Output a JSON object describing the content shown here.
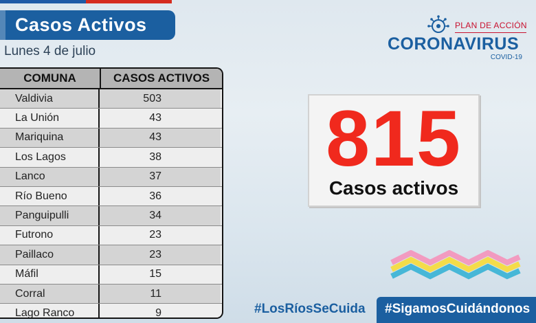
{
  "header": {
    "title": "Casos Activos",
    "date": "Lunes 4 de julio"
  },
  "table": {
    "headers": [
      "COMUNA",
      "CASOS ACTIVOS"
    ],
    "rows": [
      {
        "comuna": "Valdivia",
        "casos": "503"
      },
      {
        "comuna": "La Unión",
        "casos": "43"
      },
      {
        "comuna": "Mariquina",
        "casos": "43"
      },
      {
        "comuna": "Los Lagos",
        "casos": "38"
      },
      {
        "comuna": "Lanco",
        "casos": "37"
      },
      {
        "comuna": "Río Bueno",
        "casos": "36"
      },
      {
        "comuna": "Panguipulli",
        "casos": "34"
      },
      {
        "comuna": "Futrono",
        "casos": "23"
      },
      {
        "comuna": "Paillaco",
        "casos": "23"
      },
      {
        "comuna": "Máfil",
        "casos": "15"
      },
      {
        "comuna": "Corral",
        "casos": "11"
      },
      {
        "comuna": "Lago Ranco",
        "casos": "9"
      }
    ]
  },
  "logo": {
    "plan": "PLAN DE ACCIÓN",
    "name": "CORONAVIRUS",
    "sub": "COVID-19",
    "icon": "virus-icon"
  },
  "summary": {
    "total": "815",
    "label": "Casos activos"
  },
  "footer": {
    "hashtag1": "#LosRíosSeCuida",
    "hashtag2": "#SigamosCuidándonos"
  },
  "colors": {
    "primary_blue": "#1b5fa0",
    "accent_red": "#f0291d",
    "flag_red": "#d52b1e"
  }
}
